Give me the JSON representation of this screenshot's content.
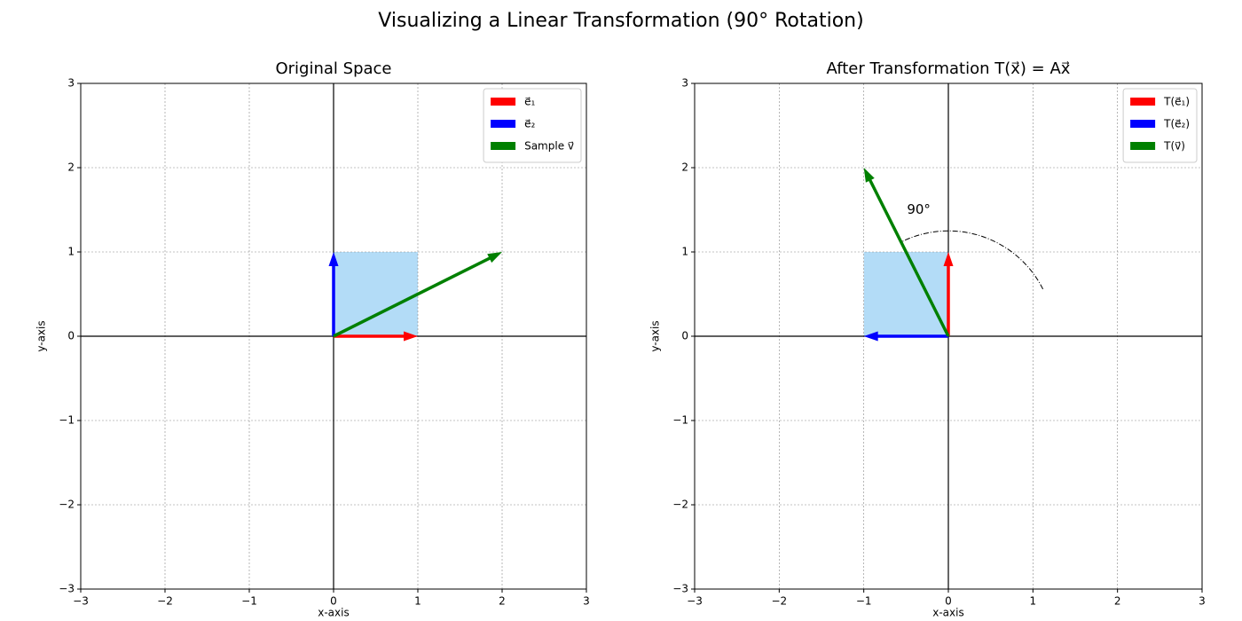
{
  "title": "Visualizing a Linear Transformation (90° Rotation)",
  "chart_data": [
    {
      "type": "vector",
      "title": "Original Space",
      "xlabel": "x-axis",
      "ylabel": "y-axis",
      "xlim": [
        -3,
        3
      ],
      "ylim": [
        -3,
        3
      ],
      "xticks": [
        {
          "value": -3,
          "label": "−3"
        },
        {
          "value": -2,
          "label": "−2"
        },
        {
          "value": -1,
          "label": "−1"
        },
        0,
        1,
        2,
        3
      ],
      "yticks": [
        {
          "value": -3,
          "label": "−3"
        },
        {
          "value": -2,
          "label": "−2"
        },
        {
          "value": -1,
          "label": "−1"
        },
        0,
        1,
        2,
        3
      ],
      "grid": true,
      "legend": "upper right",
      "region": {
        "color": "#b3dcf7",
        "x": [
          0,
          1,
          1,
          0
        ],
        "y": [
          0,
          0,
          1,
          1
        ]
      },
      "series": [
        {
          "name": "e⃗₁",
          "color": "#ff0000",
          "x": [
            1
          ],
          "values": [
            0
          ]
        },
        {
          "name": "e⃗₂",
          "color": "#0000ff",
          "x": [
            0
          ],
          "values": [
            1
          ]
        },
        {
          "name": "Sample v⃗",
          "color": "#008000",
          "x": [
            2
          ],
          "values": [
            1
          ]
        }
      ]
    },
    {
      "type": "vector",
      "title": "After Transformation T(x⃗) = Ax⃗",
      "xlabel": "x-axis",
      "ylabel": "y-axis",
      "xlim": [
        -3,
        3
      ],
      "ylim": [
        -3,
        3
      ],
      "xticks": [
        {
          "value": -3,
          "label": "−3"
        },
        {
          "value": -2,
          "label": "−2"
        },
        {
          "value": -1,
          "label": "−1"
        },
        0,
        1,
        2,
        3
      ],
      "yticks": [
        {
          "value": -3,
          "label": "−3"
        },
        {
          "value": -2,
          "label": "−2"
        },
        {
          "value": -1,
          "label": "−1"
        },
        0,
        1,
        2,
        3
      ],
      "grid": true,
      "legend": "upper right",
      "region": {
        "color": "#b3dcf7",
        "x": [
          0,
          0,
          -1,
          -1
        ],
        "y": [
          0,
          1,
          1,
          0
        ]
      },
      "series": [
        {
          "name": "T(e⃗₁)",
          "color": "#ff0000",
          "x": [
            0
          ],
          "values": [
            1
          ]
        },
        {
          "name": "T(e⃗₂)",
          "color": "#0000ff",
          "x": [
            -1
          ],
          "values": [
            0
          ]
        },
        {
          "name": "T(v⃗)",
          "color": "#008000",
          "x": [
            -1
          ],
          "values": [
            2
          ]
        }
      ],
      "arc": {
        "radius": 1.25,
        "theta": [
          26.57,
          116.57
        ]
      },
      "annotation": {
        "text": "90°",
        "x": -0.35,
        "y": 1.5
      }
    }
  ]
}
